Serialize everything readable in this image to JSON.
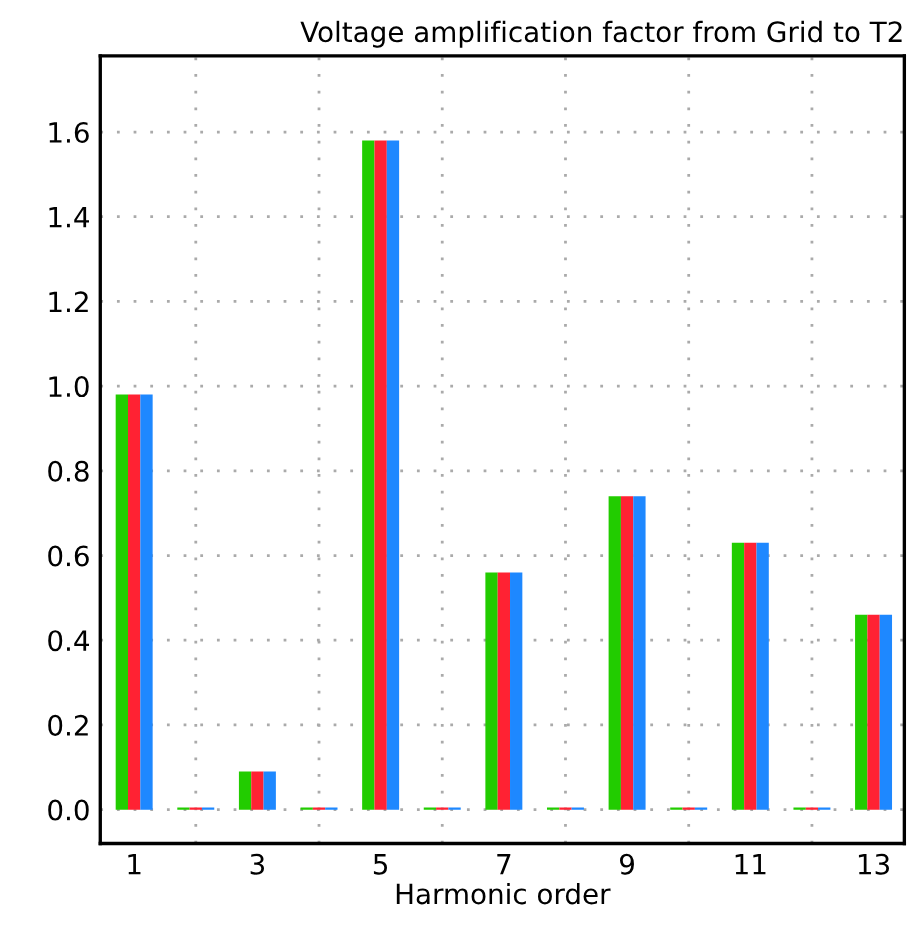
{
  "chart_data": {
    "type": "bar",
    "title": "Voltage amplification factor from Grid to T2",
    "xlabel": "Harmonic order",
    "categories": [
      "1",
      null,
      "3",
      null,
      "5",
      null,
      "7",
      null,
      "9",
      null,
      "11",
      null,
      "13"
    ],
    "series": [
      {
        "color": "#22cc00",
        "values": [
          0.98,
          0.005,
          0.09,
          0.005,
          1.58,
          0.005,
          0.56,
          0.005,
          0.74,
          0.005,
          0.63,
          0.005,
          0.46
        ]
      },
      {
        "color": "#ff2233",
        "values": [
          0.98,
          0.005,
          0.09,
          0.005,
          1.58,
          0.005,
          0.56,
          0.005,
          0.74,
          0.005,
          0.63,
          0.005,
          0.46
        ]
      },
      {
        "color": "#1e88ff",
        "values": [
          0.98,
          0.005,
          0.09,
          0.005,
          1.58,
          0.005,
          0.56,
          0.005,
          0.74,
          0.005,
          0.63,
          0.005,
          0.46
        ]
      }
    ],
    "ylim": [
      -0.08,
      1.78
    ],
    "yticks": [
      {
        "value": 0,
        "label": "0.0"
      },
      {
        "value": 0.2,
        "label": "0.2"
      },
      {
        "value": 0.4,
        "label": "0.4"
      },
      {
        "value": 0.6,
        "label": "0.6"
      },
      {
        "value": 0.8,
        "label": "0.8"
      },
      {
        "value": 1,
        "label": "1.0"
      },
      {
        "value": 1.2,
        "label": "1.2"
      },
      {
        "value": 1.4,
        "label": "1.4"
      },
      {
        "value": 1.6,
        "label": "1.6"
      }
    ],
    "grid": true
  }
}
